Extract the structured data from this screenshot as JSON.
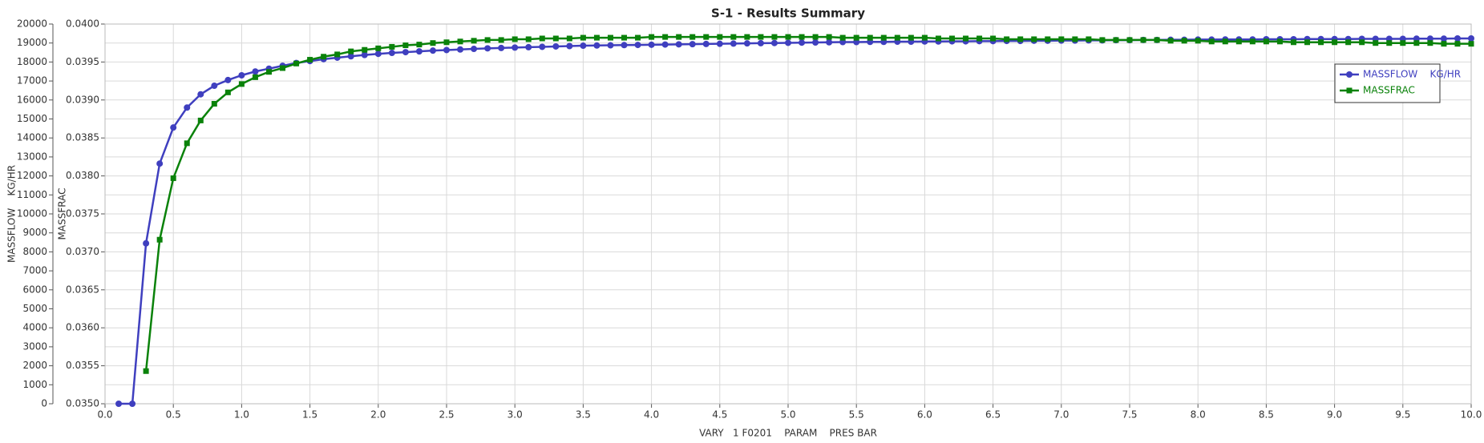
{
  "chart_data": {
    "type": "line",
    "title": "S-1 - Results Summary",
    "x_label": "VARY   1 F0201    PARAM    PRES BAR",
    "y_label": "MASSFLOW    KG/HR",
    "y2_label": "MASSFRAC",
    "grid": true,
    "x": [
      0.1,
      0.2,
      0.3,
      0.4,
      0.5,
      0.6,
      0.7,
      0.8,
      0.9,
      1.0,
      1.1,
      1.2,
      1.3,
      1.4,
      1.5,
      1.6,
      1.7,
      1.8,
      1.9,
      2.0,
      2.1,
      2.2,
      2.3,
      2.4,
      2.5,
      2.6,
      2.7,
      2.8,
      2.9,
      3.0,
      3.1,
      3.2,
      3.3,
      3.4,
      3.5,
      3.6,
      3.7,
      3.8,
      3.9,
      4.0,
      4.1,
      4.2,
      4.3,
      4.4,
      4.5,
      4.6,
      4.7,
      4.8,
      4.9,
      5.0,
      5.1,
      5.2,
      5.3,
      5.4,
      5.5,
      5.6,
      5.7,
      5.8,
      5.9,
      6.0,
      6.1,
      6.2,
      6.3,
      6.4,
      6.5,
      6.6,
      6.7,
      6.8,
      6.9,
      7.0,
      7.1,
      7.2,
      7.3,
      7.4,
      7.5,
      7.6,
      7.7,
      7.8,
      7.9,
      8.0,
      8.1,
      8.2,
      8.3,
      8.4,
      8.5,
      8.6,
      8.7,
      8.8,
      8.9,
      9.0,
      9.1,
      9.2,
      9.3,
      9.4,
      9.5,
      9.6,
      9.7,
      9.8,
      9.9,
      10.0
    ],
    "series": [
      {
        "name": "MASSFLOW    KG/HR",
        "color": "#3f3fbf",
        "marker": "circle",
        "values": [
          0,
          0,
          8450,
          12650,
          14550,
          15600,
          16300,
          16750,
          17050,
          17300,
          17500,
          17650,
          17800,
          17950,
          18050,
          18150,
          18230,
          18300,
          18370,
          18430,
          18480,
          18520,
          18560,
          18600,
          18630,
          18660,
          18690,
          18720,
          18740,
          18760,
          18780,
          18800,
          18820,
          18840,
          18860,
          18870,
          18880,
          18890,
          18900,
          18910,
          18920,
          18930,
          18940,
          18950,
          18960,
          18970,
          18980,
          18990,
          19000,
          19010,
          19020,
          19030,
          19040,
          19050,
          19050,
          19060,
          19060,
          19070,
          19070,
          19080,
          19080,
          19090,
          19090,
          19100,
          19100,
          19110,
          19110,
          19120,
          19120,
          19130,
          19130,
          19140,
          19140,
          19150,
          19150,
          19160,
          19160,
          19170,
          19170,
          19180,
          19180,
          19190,
          19190,
          19190,
          19200,
          19200,
          19200,
          19210,
          19210,
          19210,
          19210,
          19220,
          19220,
          19220,
          19220,
          19230,
          19230,
          19230,
          19240,
          19240
        ]
      },
      {
        "name": "MASSFRAC",
        "color": "#0a820a",
        "marker": "square",
        "axis": "y2",
        "values": [
          null,
          null,
          0.03543,
          0.03716,
          0.03797,
          0.03843,
          0.03873,
          0.03895,
          0.0391,
          0.03921,
          0.0393,
          0.03937,
          0.03942,
          0.03948,
          0.03953,
          0.03957,
          0.0396,
          0.03964,
          0.03966,
          0.03968,
          0.0397,
          0.03972,
          0.03973,
          0.03975,
          0.03976,
          0.03977,
          0.03978,
          0.03979,
          0.03979,
          0.0398,
          0.0398,
          0.03981,
          0.03981,
          0.03981,
          0.03982,
          0.03982,
          0.03982,
          0.03982,
          0.03982,
          0.03983,
          0.03983,
          0.03983,
          0.03983,
          0.03983,
          0.03983,
          0.03983,
          0.03983,
          0.03983,
          0.03983,
          0.03983,
          0.03983,
          0.03983,
          0.03983,
          0.03982,
          0.03982,
          0.03982,
          0.03982,
          0.03982,
          0.03982,
          0.03982,
          0.03981,
          0.03981,
          0.03981,
          0.03981,
          0.03981,
          0.0398,
          0.0398,
          0.0398,
          0.0398,
          0.0398,
          0.0398,
          0.0398,
          0.03979,
          0.03979,
          0.03979,
          0.03979,
          0.03979,
          0.03978,
          0.03978,
          0.03978,
          0.03977,
          0.03977,
          0.03977,
          0.03977,
          0.03977,
          0.03977,
          0.03976,
          0.03976,
          0.03976,
          0.03976,
          0.03976,
          0.03976,
          0.03975,
          0.03975,
          0.03975,
          0.03975,
          0.03975,
          0.03974,
          0.03974,
          0.03974
        ]
      }
    ],
    "xlim": [
      0,
      10
    ],
    "xticks": [
      {
        "value": 0,
        "label": "0.0"
      },
      0.5,
      {
        "value": 1,
        "label": "1.0"
      },
      1.5,
      {
        "value": 2,
        "label": "2.0"
      },
      2.5,
      {
        "value": 3,
        "label": "3.0"
      },
      3.5,
      {
        "value": 4,
        "label": "4.0"
      },
      4.5,
      {
        "value": 5,
        "label": "5.0"
      },
      5.5,
      {
        "value": 6,
        "label": "6.0"
      },
      6.5,
      {
        "value": 7,
        "label": "7.0"
      },
      7.5,
      {
        "value": 8,
        "label": "8.0"
      },
      8.5,
      {
        "value": 9,
        "label": "9.0"
      },
      9.5,
      {
        "value": 10,
        "label": "10.0"
      }
    ],
    "ylim": [
      0,
      20000
    ],
    "yticks": [
      0,
      1000,
      2000,
      3000,
      4000,
      5000,
      6000,
      7000,
      8000,
      9000,
      10000,
      11000,
      12000,
      13000,
      14000,
      15000,
      16000,
      17000,
      18000,
      19000,
      20000
    ],
    "y2lim": [
      0.035,
      0.04
    ],
    "y2ticks": [
      {
        "value": 0.035,
        "label": "0.0350"
      },
      0.0355,
      {
        "value": 0.036,
        "label": "0.0360"
      },
      0.0365,
      {
        "value": 0.037,
        "label": "0.0370"
      },
      0.0375,
      {
        "value": 0.038,
        "label": "0.0380"
      },
      0.0385,
      {
        "value": 0.039,
        "label": "0.0390"
      },
      0.0395,
      {
        "value": 0.04,
        "label": "0.0400"
      }
    ]
  }
}
